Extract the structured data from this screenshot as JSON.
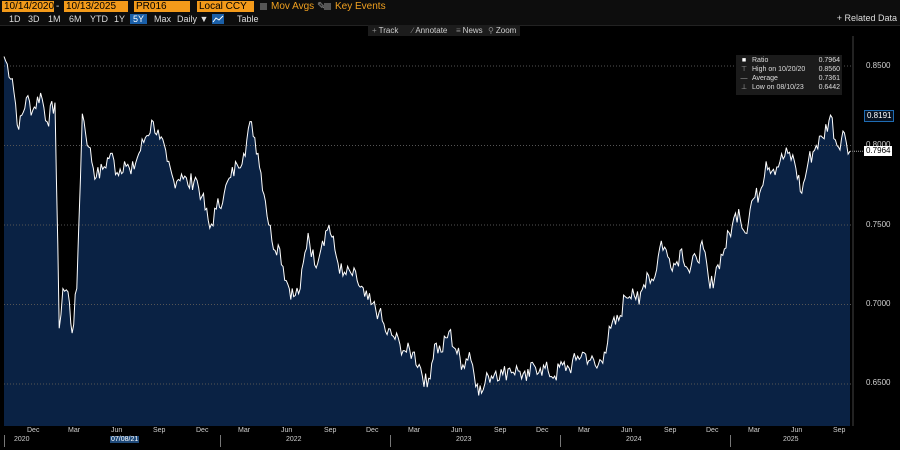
{
  "toolbar": {
    "start_date": "10/14/2020",
    "end_date": "10/13/2025",
    "ticker": "PR016",
    "currency": "Local CCY",
    "mov_avgs": "Mov Avgs",
    "key_events": "Key Events",
    "date_sep": "-"
  },
  "row2": {
    "ranges": [
      "1D",
      "3D",
      "1M",
      "6M",
      "YTD",
      "1Y",
      "5Y",
      "Max"
    ],
    "active_range": "5Y",
    "frequency": "Daily ▼",
    "table_label": "Table",
    "related_data": "+ Related Data"
  },
  "chart_tools": {
    "track": "Track",
    "annotate": "Annotate",
    "news": "News",
    "zoom": "Zoom"
  },
  "legend": {
    "ratio_label": "Ratio",
    "ratio_value": "0.7964",
    "high_label": "High on 10/20/20",
    "high_value": "0.8560",
    "avg_label": "Average",
    "avg_value": "0.7361",
    "low_label": "Low on 08/10/23",
    "low_value": "0.6442"
  },
  "y_axis": {
    "ticks": [
      "0.8500",
      "0.8000",
      "0.7500",
      "0.7000",
      "0.6500"
    ],
    "last_value_tag": "0.7964",
    "recent_high_tag": "0.8191"
  },
  "x_axis": {
    "months": [
      "Dec",
      "Mar",
      "Jun",
      "Sep",
      "Dec",
      "Mar",
      "Jun",
      "Sep",
      "Dec",
      "Mar",
      "Jun",
      "Sep",
      "Dec",
      "Mar",
      "Jun",
      "Sep",
      "Dec",
      "Mar",
      "Jun",
      "Sep"
    ],
    "years": [
      "2020",
      "2022",
      "2023",
      "2024",
      "2025"
    ],
    "cursor_date": "07/08/21"
  },
  "colors": {
    "accent_orange": "#f39a1a",
    "active_blue": "#1a5fa8",
    "area_fill": "#0a2244",
    "line": "#ffffff",
    "background": "#000000"
  },
  "chart_data": {
    "type": "area",
    "title": "",
    "xlabel": "",
    "ylabel": "",
    "ylim": [
      0.625,
      0.8625
    ],
    "x": [
      "2020-10-14",
      "2020-11-01",
      "2020-11-15",
      "2020-12-01",
      "2020-12-15",
      "2021-01-01",
      "2021-01-15",
      "2021-02-01",
      "2021-02-10",
      "2021-02-18",
      "2021-03-01",
      "2021-03-10",
      "2021-03-20",
      "2021-04-01",
      "2021-04-15",
      "2021-05-01",
      "2021-05-15",
      "2021-06-01",
      "2021-06-15",
      "2021-07-01",
      "2021-07-15",
      "2021-08-01",
      "2021-08-15",
      "2021-09-01",
      "2021-09-15",
      "2021-10-01",
      "2021-10-15",
      "2021-11-01",
      "2021-11-15",
      "2021-12-01",
      "2021-12-15",
      "2022-01-01",
      "2022-01-15",
      "2022-02-01",
      "2022-02-15",
      "2022-03-01",
      "2022-03-15",
      "2022-04-01",
      "2022-04-15",
      "2022-05-01",
      "2022-05-15",
      "2022-06-01",
      "2022-06-15",
      "2022-07-01",
      "2022-07-15",
      "2022-08-01",
      "2022-08-15",
      "2022-09-01",
      "2022-09-15",
      "2022-10-01",
      "2022-10-15",
      "2022-11-01",
      "2022-11-15",
      "2022-12-01",
      "2022-12-15",
      "2023-01-01",
      "2023-01-15",
      "2023-02-01",
      "2023-02-15",
      "2023-03-01",
      "2023-03-15",
      "2023-04-01",
      "2023-04-15",
      "2023-05-01",
      "2023-05-15",
      "2023-06-01",
      "2023-06-15",
      "2023-07-01",
      "2023-07-15",
      "2023-08-01",
      "2023-08-10",
      "2023-08-25",
      "2023-09-10",
      "2023-09-25",
      "2023-10-10",
      "2023-11-01",
      "2023-11-15",
      "2023-12-01",
      "2023-12-15",
      "2024-01-01",
      "2024-01-15",
      "2024-02-01",
      "2024-02-15",
      "2024-03-01",
      "2024-03-15",
      "2024-04-01",
      "2024-04-15",
      "2024-05-01",
      "2024-05-15",
      "2024-06-01",
      "2024-06-15",
      "2024-07-01",
      "2024-07-15",
      "2024-08-01",
      "2024-08-15",
      "2024-09-01",
      "2024-09-15",
      "2024-10-01",
      "2024-10-15",
      "2024-11-01",
      "2024-11-15",
      "2024-12-01",
      "2024-12-15",
      "2025-01-01",
      "2025-01-15",
      "2025-02-01",
      "2025-02-15",
      "2025-03-01",
      "2025-03-15",
      "2025-04-01",
      "2025-04-15",
      "2025-05-01",
      "2025-05-15",
      "2025-06-01",
      "2025-06-15",
      "2025-07-01",
      "2025-07-15",
      "2025-08-01",
      "2025-08-15",
      "2025-09-01",
      "2025-09-15",
      "2025-10-01",
      "2025-10-13"
    ],
    "y": [
      0.856,
      0.842,
      0.81,
      0.83,
      0.822,
      0.833,
      0.815,
      0.827,
      0.685,
      0.71,
      0.708,
      0.682,
      0.71,
      0.82,
      0.799,
      0.78,
      0.785,
      0.795,
      0.783,
      0.79,
      0.782,
      0.795,
      0.805,
      0.815,
      0.804,
      0.79,
      0.778,
      0.782,
      0.775,
      0.78,
      0.768,
      0.748,
      0.76,
      0.77,
      0.78,
      0.788,
      0.795,
      0.815,
      0.795,
      0.765,
      0.74,
      0.735,
      0.715,
      0.705,
      0.71,
      0.745,
      0.725,
      0.74,
      0.75,
      0.73,
      0.718,
      0.72,
      0.715,
      0.705,
      0.7,
      0.695,
      0.683,
      0.68,
      0.675,
      0.67,
      0.67,
      0.66,
      0.648,
      0.675,
      0.67,
      0.683,
      0.672,
      0.662,
      0.67,
      0.65,
      0.6442,
      0.655,
      0.658,
      0.656,
      0.66,
      0.658,
      0.652,
      0.662,
      0.66,
      0.658,
      0.655,
      0.662,
      0.66,
      0.665,
      0.67,
      0.665,
      0.66,
      0.67,
      0.685,
      0.69,
      0.705,
      0.71,
      0.7,
      0.72,
      0.715,
      0.74,
      0.73,
      0.725,
      0.735,
      0.72,
      0.73,
      0.735,
      0.71,
      0.725,
      0.735,
      0.75,
      0.76,
      0.745,
      0.765,
      0.77,
      0.79,
      0.785,
      0.79,
      0.795,
      0.79,
      0.77,
      0.79,
      0.8,
      0.805,
      0.8191,
      0.8,
      0.808,
      0.7964
    ]
  }
}
